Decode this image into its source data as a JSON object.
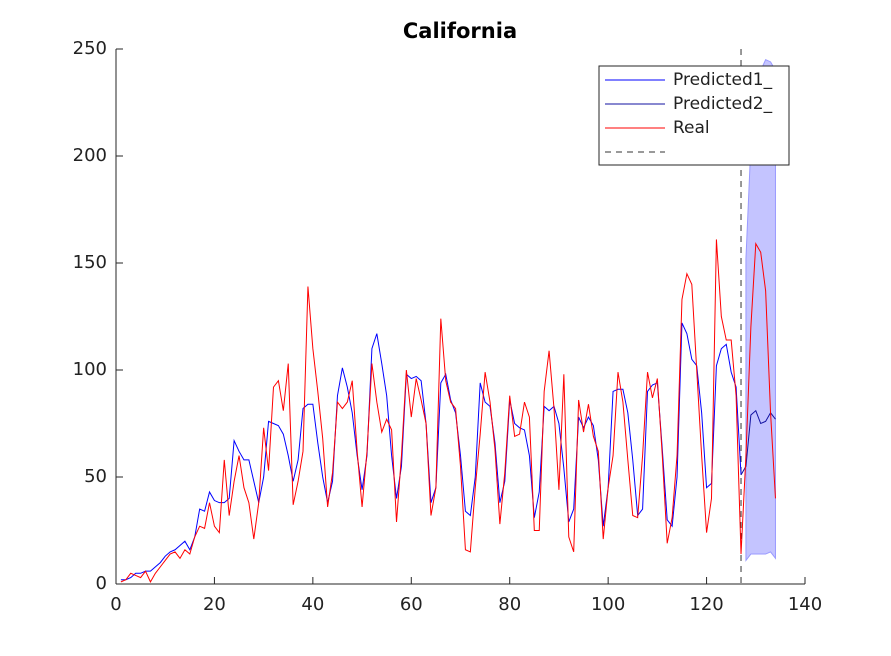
{
  "chart_data": {
    "type": "line",
    "title": "California",
    "xlim": [
      0,
      140
    ],
    "xticks": [
      0,
      20,
      40,
      60,
      80,
      100,
      120,
      140
    ],
    "ylim": [
      0,
      250
    ],
    "yticks": [
      0,
      50,
      100,
      150,
      200,
      250
    ],
    "vline": 127,
    "band": {
      "color": "#c4c4ff",
      "x": [
        128,
        129,
        130,
        131,
        132,
        133,
        134
      ],
      "lower": [
        11,
        14,
        14,
        14,
        14,
        15,
        12
      ],
      "upper": [
        152,
        205,
        235,
        240,
        245,
        244,
        240
      ]
    },
    "series": [
      {
        "name": "Predicted1_",
        "color": "#0000ff",
        "x": [
          1,
          2,
          3,
          4,
          5,
          6,
          7,
          8,
          9,
          10,
          11,
          12,
          13,
          14,
          15,
          16,
          17,
          18,
          19,
          20,
          21,
          22,
          23,
          24,
          25,
          26,
          27,
          28,
          29,
          30,
          31,
          32,
          33,
          34,
          35,
          36,
          37,
          38,
          39,
          40,
          41,
          42,
          43,
          44,
          45,
          46,
          47,
          48,
          49,
          50,
          51,
          52,
          53,
          54,
          55,
          56,
          57,
          58,
          59,
          60,
          61,
          62,
          63,
          64,
          65,
          66,
          67,
          68,
          69,
          70,
          71,
          72,
          73,
          74,
          75,
          76,
          77,
          78,
          79,
          80,
          81,
          82,
          83,
          84,
          85,
          86,
          87,
          88,
          89,
          90,
          91,
          92,
          93,
          94,
          95,
          96,
          97,
          98,
          99,
          100,
          101,
          102,
          103,
          104,
          105,
          106,
          107,
          108,
          109,
          110,
          111,
          112,
          113,
          114,
          115,
          116,
          117,
          118,
          119,
          120,
          121,
          122,
          123,
          124,
          125,
          126,
          127
        ],
        "values": [
          2,
          2,
          3,
          5,
          5,
          6,
          6,
          8,
          10,
          13,
          15,
          16,
          18,
          20,
          16,
          22,
          35,
          34,
          43,
          39,
          38,
          38,
          40,
          67,
          62,
          58,
          58,
          48,
          38,
          50,
          76,
          75,
          74,
          70,
          60,
          48,
          58,
          82,
          84,
          84,
          66,
          50,
          38,
          48,
          88,
          101,
          92,
          80,
          60,
          44,
          60,
          110,
          117,
          103,
          88,
          60,
          40,
          55,
          98,
          96,
          97,
          95,
          75,
          38,
          45,
          94,
          98,
          86,
          80,
          60,
          34,
          32,
          50,
          94,
          85,
          83,
          66,
          38,
          48,
          86,
          75,
          73,
          72,
          60,
          31,
          43,
          83,
          81,
          83,
          75,
          54,
          29,
          35,
          78,
          73,
          78,
          74,
          58,
          27,
          45,
          90,
          91,
          91,
          80,
          58,
          32,
          35,
          90,
          93,
          94,
          63,
          30,
          27,
          50,
          122,
          117,
          105,
          102,
          80,
          45,
          47,
          102,
          110,
          112,
          99,
          92,
          51
        ]
      },
      {
        "name": "Predicted2_",
        "color": "#1010a0",
        "x": [
          127,
          128,
          129,
          130,
          131,
          132,
          133,
          134
        ],
        "values": [
          51,
          55,
          79,
          81,
          75,
          76,
          80,
          77
        ]
      },
      {
        "name": "Real",
        "color": "#ff0000",
        "x": [
          1,
          2,
          3,
          4,
          5,
          6,
          7,
          8,
          9,
          10,
          11,
          12,
          13,
          14,
          15,
          16,
          17,
          18,
          19,
          20,
          21,
          22,
          23,
          24,
          25,
          26,
          27,
          28,
          29,
          30,
          31,
          32,
          33,
          34,
          35,
          36,
          37,
          38,
          39,
          40,
          41,
          42,
          43,
          44,
          45,
          46,
          47,
          48,
          49,
          50,
          51,
          52,
          53,
          54,
          55,
          56,
          57,
          58,
          59,
          60,
          61,
          62,
          63,
          64,
          65,
          66,
          67,
          68,
          69,
          70,
          71,
          72,
          73,
          74,
          75,
          76,
          77,
          78,
          79,
          80,
          81,
          82,
          83,
          84,
          85,
          86,
          87,
          88,
          89,
          90,
          91,
          92,
          93,
          94,
          95,
          96,
          97,
          98,
          99,
          100,
          101,
          102,
          103,
          104,
          105,
          106,
          107,
          108,
          109,
          110,
          111,
          112,
          113,
          114,
          115,
          116,
          117,
          118,
          119,
          120,
          121,
          122,
          123,
          124,
          125,
          126,
          127,
          128,
          129,
          130,
          131,
          132,
          133,
          134
        ],
        "values": [
          1,
          2,
          5,
          4,
          3,
          6,
          1,
          5,
          8,
          11,
          14,
          15,
          12,
          16,
          14,
          22,
          27,
          26,
          38,
          27,
          24,
          58,
          32,
          48,
          60,
          45,
          38,
          21,
          38,
          73,
          53,
          92,
          95,
          81,
          103,
          37,
          48,
          62,
          139,
          110,
          90,
          68,
          36,
          52,
          85,
          82,
          85,
          95,
          62,
          36,
          62,
          103,
          85,
          71,
          77,
          72,
          29,
          60,
          100,
          78,
          96,
          86,
          75,
          32,
          45,
          124,
          95,
          85,
          82,
          55,
          16,
          15,
          45,
          70,
          99,
          85,
          63,
          28,
          52,
          88,
          69,
          70,
          85,
          78,
          25,
          25,
          90,
          109,
          82,
          44,
          98,
          22,
          15,
          86,
          71,
          84,
          69,
          62,
          21,
          45,
          60,
          99,
          85,
          58,
          32,
          31,
          60,
          99,
          87,
          96,
          60,
          19,
          31,
          60,
          133,
          145,
          140,
          100,
          60,
          24,
          40,
          161,
          125,
          114,
          114,
          88,
          14,
          60,
          120,
          159,
          155,
          137,
          80,
          40
        ]
      }
    ]
  }
}
